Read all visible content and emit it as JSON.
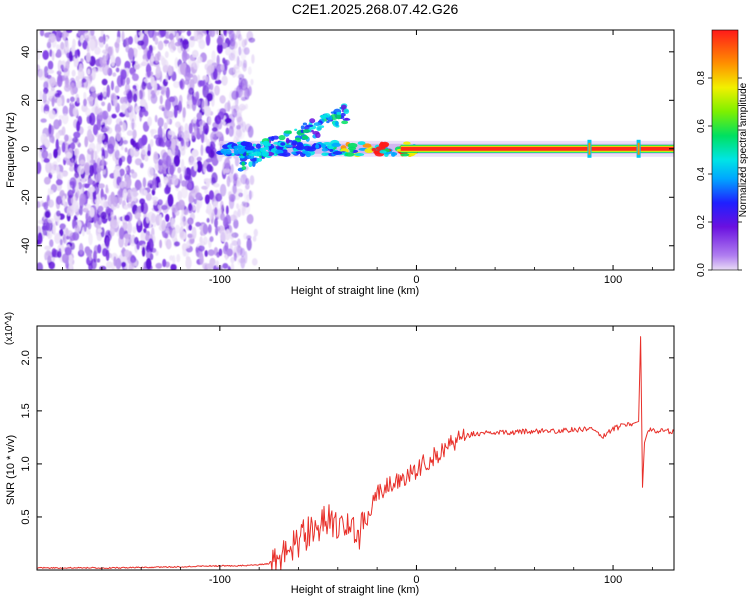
{
  "title": "C2E1.2025.268.07.42.G26",
  "colors": {
    "snr_line": "#e8302a",
    "axis": "#000000",
    "background": "#ffffff"
  },
  "chart_data": [
    {
      "type": "heatmap",
      "title": "C2E1.2025.268.07.42.G26",
      "xlabel": "Height of straight line (km)",
      "ylabel": "Frequency (Hz)",
      "xlim": [
        -193,
        131
      ],
      "ylim": [
        -50,
        49
      ],
      "xticks": [
        -100,
        0,
        100
      ],
      "yticks": [
        -40,
        -20,
        0,
        20,
        40
      ],
      "colorbar": {
        "label": "Normalized spectral amplitude",
        "range": [
          0.0,
          1.0
        ],
        "ticks": [
          0.0,
          0.2,
          0.4,
          0.6,
          0.8
        ],
        "colormap": "rainbow (lavender-purple-blue-cyan-green-yellow-red)"
      },
      "features": {
        "noise_region_x": [
          -193,
          -86
        ],
        "signal_onset_x": -100,
        "carrier_frequency": 0,
        "rising_streak_x": [
          -90,
          -35
        ],
        "rising_streak_y": [
          -5,
          15
        ],
        "strong_carrier_x": [
          0,
          131
        ],
        "spikes_x": [
          88,
          113
        ]
      }
    },
    {
      "type": "line",
      "xlabel": "Height of straight line (km)",
      "ylabel": "SNR (10 * v/v)",
      "y_multiplier": "(x10^4)",
      "xlim": [
        -193,
        131
      ],
      "ylim": [
        0.0,
        2.3
      ],
      "xticks": [
        -100,
        0,
        100
      ],
      "yticks": [
        0.5,
        1.0,
        1.5,
        2.0
      ],
      "series": [
        {
          "name": "SNR",
          "units": "x10^4",
          "x": [
            -193,
            -150,
            -120,
            -100,
            -90,
            -80,
            -75,
            -70,
            -65,
            -60,
            -55,
            -50,
            -45,
            -40,
            -35,
            -30,
            -25,
            -20,
            -15,
            -10,
            -5,
            0,
            5,
            10,
            15,
            20,
            25,
            30,
            40,
            50,
            60,
            70,
            80,
            90,
            95,
            100,
            105,
            110,
            113,
            114,
            115,
            116,
            118,
            120,
            125,
            131
          ],
          "y": [
            0.02,
            0.02,
            0.03,
            0.04,
            0.04,
            0.05,
            0.06,
            0.12,
            0.18,
            0.28,
            0.36,
            0.42,
            0.48,
            0.45,
            0.38,
            0.32,
            0.5,
            0.72,
            0.78,
            0.82,
            0.88,
            0.95,
            1.02,
            1.08,
            1.15,
            1.22,
            1.26,
            1.29,
            1.29,
            1.3,
            1.31,
            1.31,
            1.32,
            1.33,
            1.26,
            1.33,
            1.36,
            1.38,
            1.4,
            2.2,
            0.78,
            1.2,
            1.33,
            1.31,
            1.31,
            1.31
          ]
        }
      ]
    }
  ]
}
